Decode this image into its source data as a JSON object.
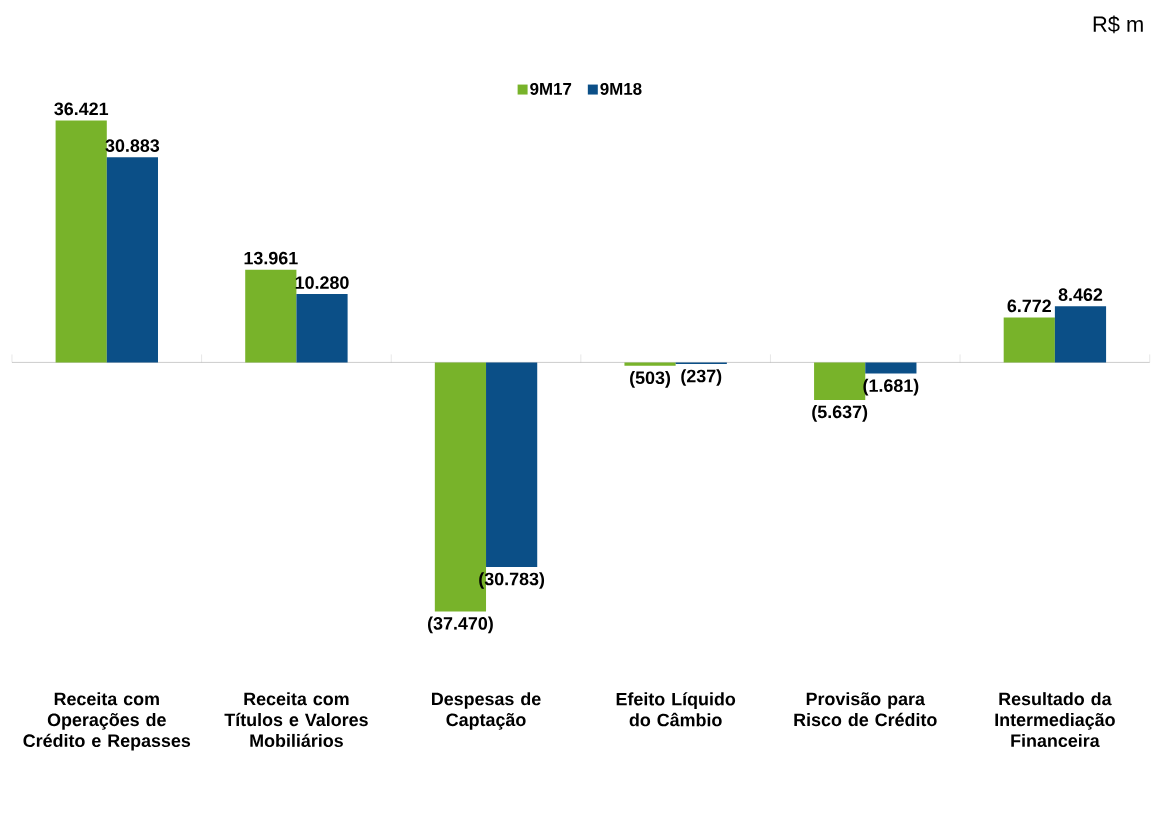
{
  "chart_data": {
    "type": "bar",
    "categories": [
      "Receita com Operações de Crédito e Repasses",
      "Receita com Títulos e Valores Mobiliários",
      "Despesas de Captação",
      "Efeito Líquido do Câmbio",
      "Provisão para Risco de Crédito",
      "Resultado da Intermediação Financeira"
    ],
    "series": [
      {
        "name": "9M17",
        "color": "#78b32a",
        "values": [
          36421,
          13961,
          -37470,
          -503,
          -5637,
          6772
        ],
        "value_labels": [
          "36.421",
          "13.961",
          "(37.470)",
          "(503)",
          "(5.637)",
          "6.772"
        ]
      },
      {
        "name": "9M18",
        "color": "#0b4f87",
        "values": [
          30883,
          10280,
          -30783,
          -237,
          -1681,
          8462
        ],
        "value_labels": [
          "30.883",
          "10.280",
          "(30.783)",
          "(237)",
          "(1.681)",
          "8.462"
        ]
      }
    ],
    "legend": "top",
    "annotations": [
      "R$ m"
    ]
  }
}
